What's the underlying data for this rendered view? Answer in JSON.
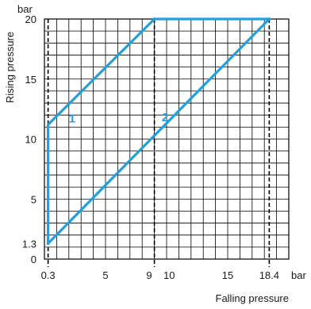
{
  "chart_data": {
    "type": "line",
    "xlabel": "Falling pressure",
    "ylabel": "Rising pressure",
    "x_unit": "bar",
    "y_unit": "bar",
    "xlim": [
      0,
      20
    ],
    "ylim": [
      0,
      20
    ],
    "grid": true,
    "x_ticks": [
      {
        "value": 0.3,
        "label": "0.3"
      },
      {
        "value": 5,
        "label": "5"
      },
      {
        "value": 9,
        "label": "9"
      },
      {
        "value": 10,
        "label": "10"
      },
      {
        "value": 15,
        "label": "15"
      },
      {
        "value": 18.4,
        "label": "18.4"
      }
    ],
    "y_ticks": [
      {
        "value": 0,
        "label": "0"
      },
      {
        "value": 1.3,
        "label": "1.3"
      },
      {
        "value": 5,
        "label": "5"
      },
      {
        "value": 10,
        "label": "10"
      },
      {
        "value": 15,
        "label": "15"
      },
      {
        "value": 20,
        "label": "20"
      }
    ],
    "reference_lines": [
      {
        "axis": "x",
        "value": 0.3,
        "style": "dashed"
      },
      {
        "axis": "x",
        "value": 9,
        "style": "dashed"
      },
      {
        "axis": "x",
        "value": 18.4,
        "style": "dashed"
      }
    ],
    "series_color": "#1fa0df",
    "series": [
      {
        "label": "1",
        "label_at": [
          2,
          11.4
        ],
        "points": [
          [
            0.3,
            1.3
          ],
          [
            0.3,
            11.2
          ],
          [
            9,
            20
          ]
        ]
      },
      {
        "label": "2",
        "label_at": [
          9.6,
          11.5
        ],
        "points": [
          [
            0.3,
            1.3
          ],
          [
            18.4,
            20
          ]
        ]
      },
      {
        "label": "",
        "points": [
          [
            9,
            20
          ],
          [
            18.4,
            20
          ]
        ]
      }
    ]
  }
}
